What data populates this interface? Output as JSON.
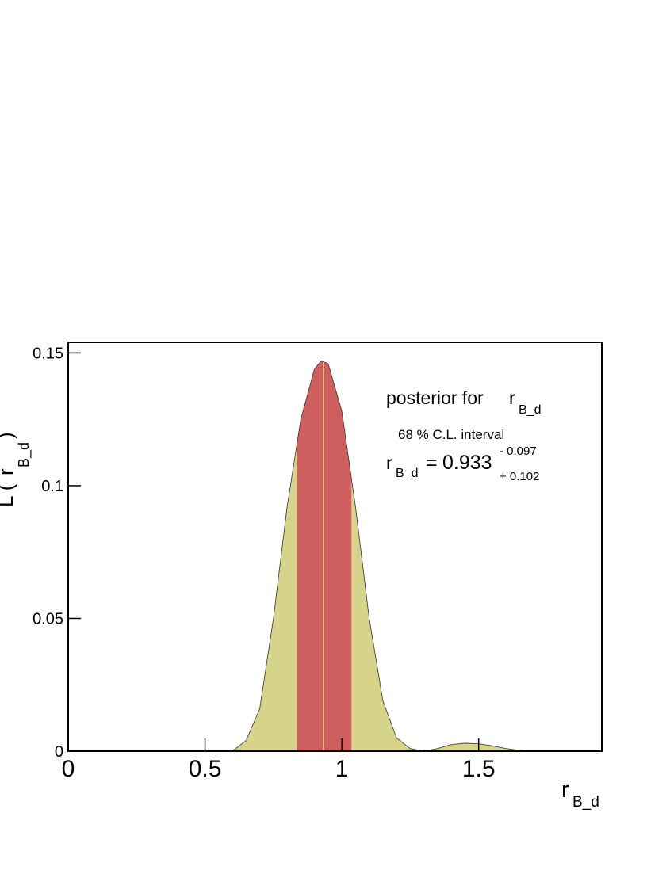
{
  "chart_data": {
    "type": "area",
    "title": {
      "main": "posterior for",
      "var": "r",
      "sub": "B_d"
    },
    "interval_title": "68 % C.L. interval",
    "result": {
      "var": "r",
      "sub": "B_d",
      "equals": "=",
      "value": 0.933,
      "minus": {
        "value": 0.097,
        "label": "- 0.097"
      },
      "plus": {
        "value": 0.102,
        "label": "+ 0.102"
      }
    },
    "x_label": {
      "main": "r",
      "sub": "B_d"
    },
    "y_label": {
      "open": "L (",
      "var": "r",
      "sub": "B_d",
      "close": ")"
    },
    "x": [
      0.55,
      0.6,
      0.65,
      0.7,
      0.75,
      0.8,
      0.85,
      0.9,
      0.925,
      0.95,
      1.0,
      1.05,
      1.1,
      1.15,
      1.2,
      1.25,
      1.3,
      1.35,
      1.4,
      1.45,
      1.5,
      1.55,
      1.6,
      1.65,
      1.7
    ],
    "values": [
      0,
      0,
      0.004,
      0.016,
      0.05,
      0.092,
      0.125,
      0.144,
      0.147,
      0.146,
      0.128,
      0.092,
      0.05,
      0.019,
      0.005,
      0.001,
      0,
      0.001,
      0.0025,
      0.003,
      0.0028,
      0.002,
      0.001,
      0.0003,
      0
    ],
    "color": "#d6d38a",
    "interval_color": "#cf5e5e",
    "xlim": [
      0,
      1.95
    ],
    "ylim": [
      0,
      0.154
    ],
    "xticks": [
      0,
      0.5,
      1,
      1.5
    ],
    "yticks": [
      0,
      0.05,
      0.1,
      0.15
    ]
  }
}
